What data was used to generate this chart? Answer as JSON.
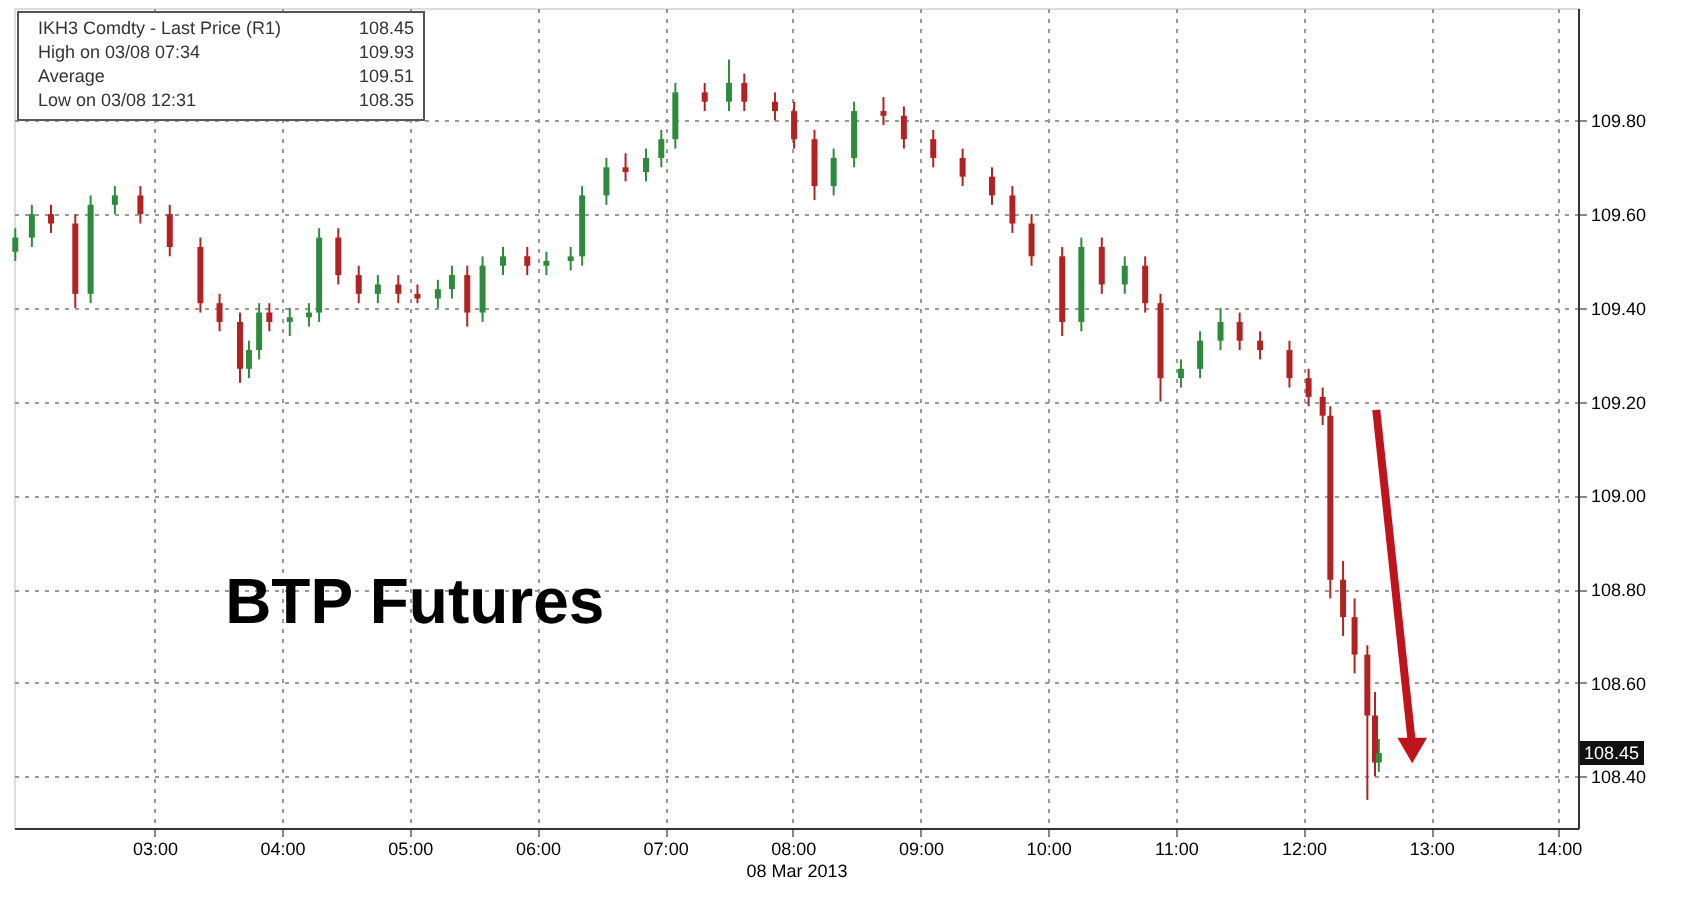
{
  "chart_data": {
    "type": "candlestick",
    "title": "BTP Futures",
    "xlabel": "08 Mar 2013",
    "x": [
      1.91,
      2.04,
      2.19,
      2.38,
      2.5,
      2.69,
      2.89,
      3.12,
      3.36,
      3.51,
      3.67,
      3.74,
      3.82,
      3.9,
      4.06,
      4.21,
      4.29,
      4.44,
      4.6,
      4.75,
      4.91,
      5.06,
      5.22,
      5.33,
      5.45,
      5.57,
      5.73,
      5.92,
      6.07,
      6.26,
      6.35,
      6.54,
      6.69,
      6.85,
      6.97,
      7.08,
      7.31,
      7.5,
      7.62,
      7.86,
      8.01,
      8.17,
      8.32,
      8.48,
      8.71,
      8.87,
      9.1,
      9.33,
      9.56,
      9.72,
      9.87,
      10.11,
      10.26,
      10.42,
      10.6,
      10.76,
      10.88,
      11.04,
      11.19,
      11.35,
      11.5,
      11.66,
      11.89,
      12.04,
      12.15,
      12.21,
      12.31,
      12.4,
      12.5,
      12.56,
      12.59
    ],
    "ohlc": [
      [
        109.52,
        109.57,
        109.5,
        109.55
      ],
      [
        109.55,
        109.62,
        109.53,
        109.6
      ],
      [
        109.6,
        109.62,
        109.56,
        109.58
      ],
      [
        109.58,
        109.6,
        109.4,
        109.43
      ],
      [
        109.43,
        109.64,
        109.41,
        109.62
      ],
      [
        109.62,
        109.66,
        109.6,
        109.64
      ],
      [
        109.64,
        109.66,
        109.58,
        109.6
      ],
      [
        109.6,
        109.62,
        109.51,
        109.53
      ],
      [
        109.53,
        109.55,
        109.39,
        109.41
      ],
      [
        109.41,
        109.43,
        109.35,
        109.37
      ],
      [
        109.37,
        109.39,
        109.24,
        109.27
      ],
      [
        109.27,
        109.33,
        109.25,
        109.31
      ],
      [
        109.31,
        109.41,
        109.29,
        109.39
      ],
      [
        109.39,
        109.41,
        109.35,
        109.37
      ],
      [
        109.37,
        109.4,
        109.34,
        109.38
      ],
      [
        109.38,
        109.41,
        109.36,
        109.39
      ],
      [
        109.39,
        109.57,
        109.37,
        109.55
      ],
      [
        109.55,
        109.57,
        109.45,
        109.47
      ],
      [
        109.47,
        109.49,
        109.41,
        109.43
      ],
      [
        109.43,
        109.47,
        109.41,
        109.45
      ],
      [
        109.45,
        109.47,
        109.41,
        109.43
      ],
      [
        109.43,
        109.45,
        109.41,
        109.42
      ],
      [
        109.42,
        109.46,
        109.4,
        109.44
      ],
      [
        109.44,
        109.49,
        109.42,
        109.47
      ],
      [
        109.47,
        109.49,
        109.36,
        109.39
      ],
      [
        109.39,
        109.51,
        109.37,
        109.49
      ],
      [
        109.49,
        109.53,
        109.47,
        109.51
      ],
      [
        109.51,
        109.53,
        109.47,
        109.49
      ],
      [
        109.49,
        109.52,
        109.47,
        109.5
      ],
      [
        109.5,
        109.53,
        109.48,
        109.51
      ],
      [
        109.51,
        109.66,
        109.49,
        109.64
      ],
      [
        109.64,
        109.72,
        109.62,
        109.7
      ],
      [
        109.7,
        109.73,
        109.67,
        109.69
      ],
      [
        109.69,
        109.74,
        109.67,
        109.72
      ],
      [
        109.72,
        109.78,
        109.7,
        109.76
      ],
      [
        109.76,
        109.88,
        109.74,
        109.86
      ],
      [
        109.86,
        109.88,
        109.82,
        109.84
      ],
      [
        109.84,
        109.93,
        109.82,
        109.88
      ],
      [
        109.88,
        109.9,
        109.82,
        109.84
      ],
      [
        109.84,
        109.86,
        109.8,
        109.82
      ],
      [
        109.82,
        109.84,
        109.74,
        109.76
      ],
      [
        109.76,
        109.78,
        109.63,
        109.66
      ],
      [
        109.66,
        109.74,
        109.64,
        109.72
      ],
      [
        109.72,
        109.84,
        109.7,
        109.82
      ],
      [
        109.82,
        109.85,
        109.79,
        109.81
      ],
      [
        109.81,
        109.83,
        109.74,
        109.76
      ],
      [
        109.76,
        109.78,
        109.7,
        109.72
      ],
      [
        109.72,
        109.74,
        109.66,
        109.68
      ],
      [
        109.68,
        109.7,
        109.62,
        109.64
      ],
      [
        109.64,
        109.66,
        109.56,
        109.58
      ],
      [
        109.58,
        109.6,
        109.49,
        109.51
      ],
      [
        109.51,
        109.53,
        109.34,
        109.37
      ],
      [
        109.37,
        109.55,
        109.35,
        109.53
      ],
      [
        109.53,
        109.55,
        109.43,
        109.45
      ],
      [
        109.45,
        109.51,
        109.43,
        109.49
      ],
      [
        109.49,
        109.51,
        109.39,
        109.41
      ],
      [
        109.41,
        109.43,
        109.2,
        109.25
      ],
      [
        109.25,
        109.29,
        109.23,
        109.27
      ],
      [
        109.27,
        109.35,
        109.25,
        109.33
      ],
      [
        109.33,
        109.4,
        109.31,
        109.37
      ],
      [
        109.37,
        109.39,
        109.31,
        109.33
      ],
      [
        109.33,
        109.35,
        109.29,
        109.31
      ],
      [
        109.31,
        109.33,
        109.23,
        109.25
      ],
      [
        109.25,
        109.27,
        109.19,
        109.21
      ],
      [
        109.21,
        109.23,
        109.15,
        109.17
      ],
      [
        109.17,
        109.19,
        108.78,
        108.82
      ],
      [
        108.82,
        108.86,
        108.7,
        108.74
      ],
      [
        108.74,
        108.78,
        108.62,
        108.66
      ],
      [
        108.66,
        108.68,
        108.35,
        108.53
      ],
      [
        108.53,
        108.58,
        108.4,
        108.43
      ],
      [
        108.43,
        108.48,
        108.41,
        108.45
      ]
    ],
    "colors": [
      "#2e8b3e",
      "#2e8b3e",
      "#b22222",
      "#b22222",
      "#2e8b3e",
      "#2e8b3e",
      "#b22222",
      "#b22222",
      "#b22222",
      "#b22222",
      "#b22222",
      "#2e8b3e",
      "#2e8b3e",
      "#b22222",
      "#2e8b3e",
      "#2e8b3e",
      "#2e8b3e",
      "#b22222",
      "#b22222",
      "#2e8b3e",
      "#b22222",
      "#b22222",
      "#2e8b3e",
      "#2e8b3e",
      "#b22222",
      "#2e8b3e",
      "#2e8b3e",
      "#b22222",
      "#2e8b3e",
      "#2e8b3e",
      "#2e8b3e",
      "#2e8b3e",
      "#b22222",
      "#2e8b3e",
      "#2e8b3e",
      "#2e8b3e",
      "#b22222",
      "#2e8b3e",
      "#b22222",
      "#b22222",
      "#b22222",
      "#b22222",
      "#2e8b3e",
      "#2e8b3e",
      "#b22222",
      "#b22222",
      "#b22222",
      "#b22222",
      "#b22222",
      "#b22222",
      "#b22222",
      "#b22222",
      "#2e8b3e",
      "#b22222",
      "#2e8b3e",
      "#b22222",
      "#b22222",
      "#2e8b3e",
      "#2e8b3e",
      "#2e8b3e",
      "#b22222",
      "#b22222",
      "#b22222",
      "#b22222",
      "#b22222",
      "#b22222",
      "#b22222",
      "#b22222",
      "#b22222",
      "#b22222",
      "#2e8b3e"
    ],
    "xlim": [
      1.9,
      14.15
    ],
    "xticks": [
      {
        "value": 3,
        "label": "03:00"
      },
      {
        "value": 4,
        "label": "04:00"
      },
      {
        "value": 5,
        "label": "05:00"
      },
      {
        "value": 6,
        "label": "06:00"
      },
      {
        "value": 7,
        "label": "07:00"
      },
      {
        "value": 8,
        "label": "08:00"
      },
      {
        "value": 9,
        "label": "09:00"
      },
      {
        "value": 10,
        "label": "10:00"
      },
      {
        "value": 11,
        "label": "11:00"
      },
      {
        "value": 12,
        "label": "12:00"
      },
      {
        "value": 13,
        "label": "13:00"
      },
      {
        "value": 14,
        "label": "14:00"
      }
    ],
    "ylim": [
      108.29,
      110.04
    ],
    "yticks": [
      {
        "value": 108.4,
        "label": "108.40"
      },
      {
        "value": 108.6,
        "label": "108.60"
      },
      {
        "value": 108.8,
        "label": "108.80"
      },
      {
        "value": 109.0,
        "label": "109.00"
      },
      {
        "value": 109.2,
        "label": "109.20"
      },
      {
        "value": 109.4,
        "label": "109.40"
      },
      {
        "value": 109.6,
        "label": "109.60"
      },
      {
        "value": 109.8,
        "label": "109.80"
      }
    ],
    "grid": true,
    "annotations": [
      "IKH3 Comdty - Last Price (R1)",
      "108.45",
      "High on 03/08 07:34",
      "109.93",
      "Average",
      "109.51",
      "Low on 03/08 12:31",
      "108.35",
      "108.45"
    ]
  }
}
